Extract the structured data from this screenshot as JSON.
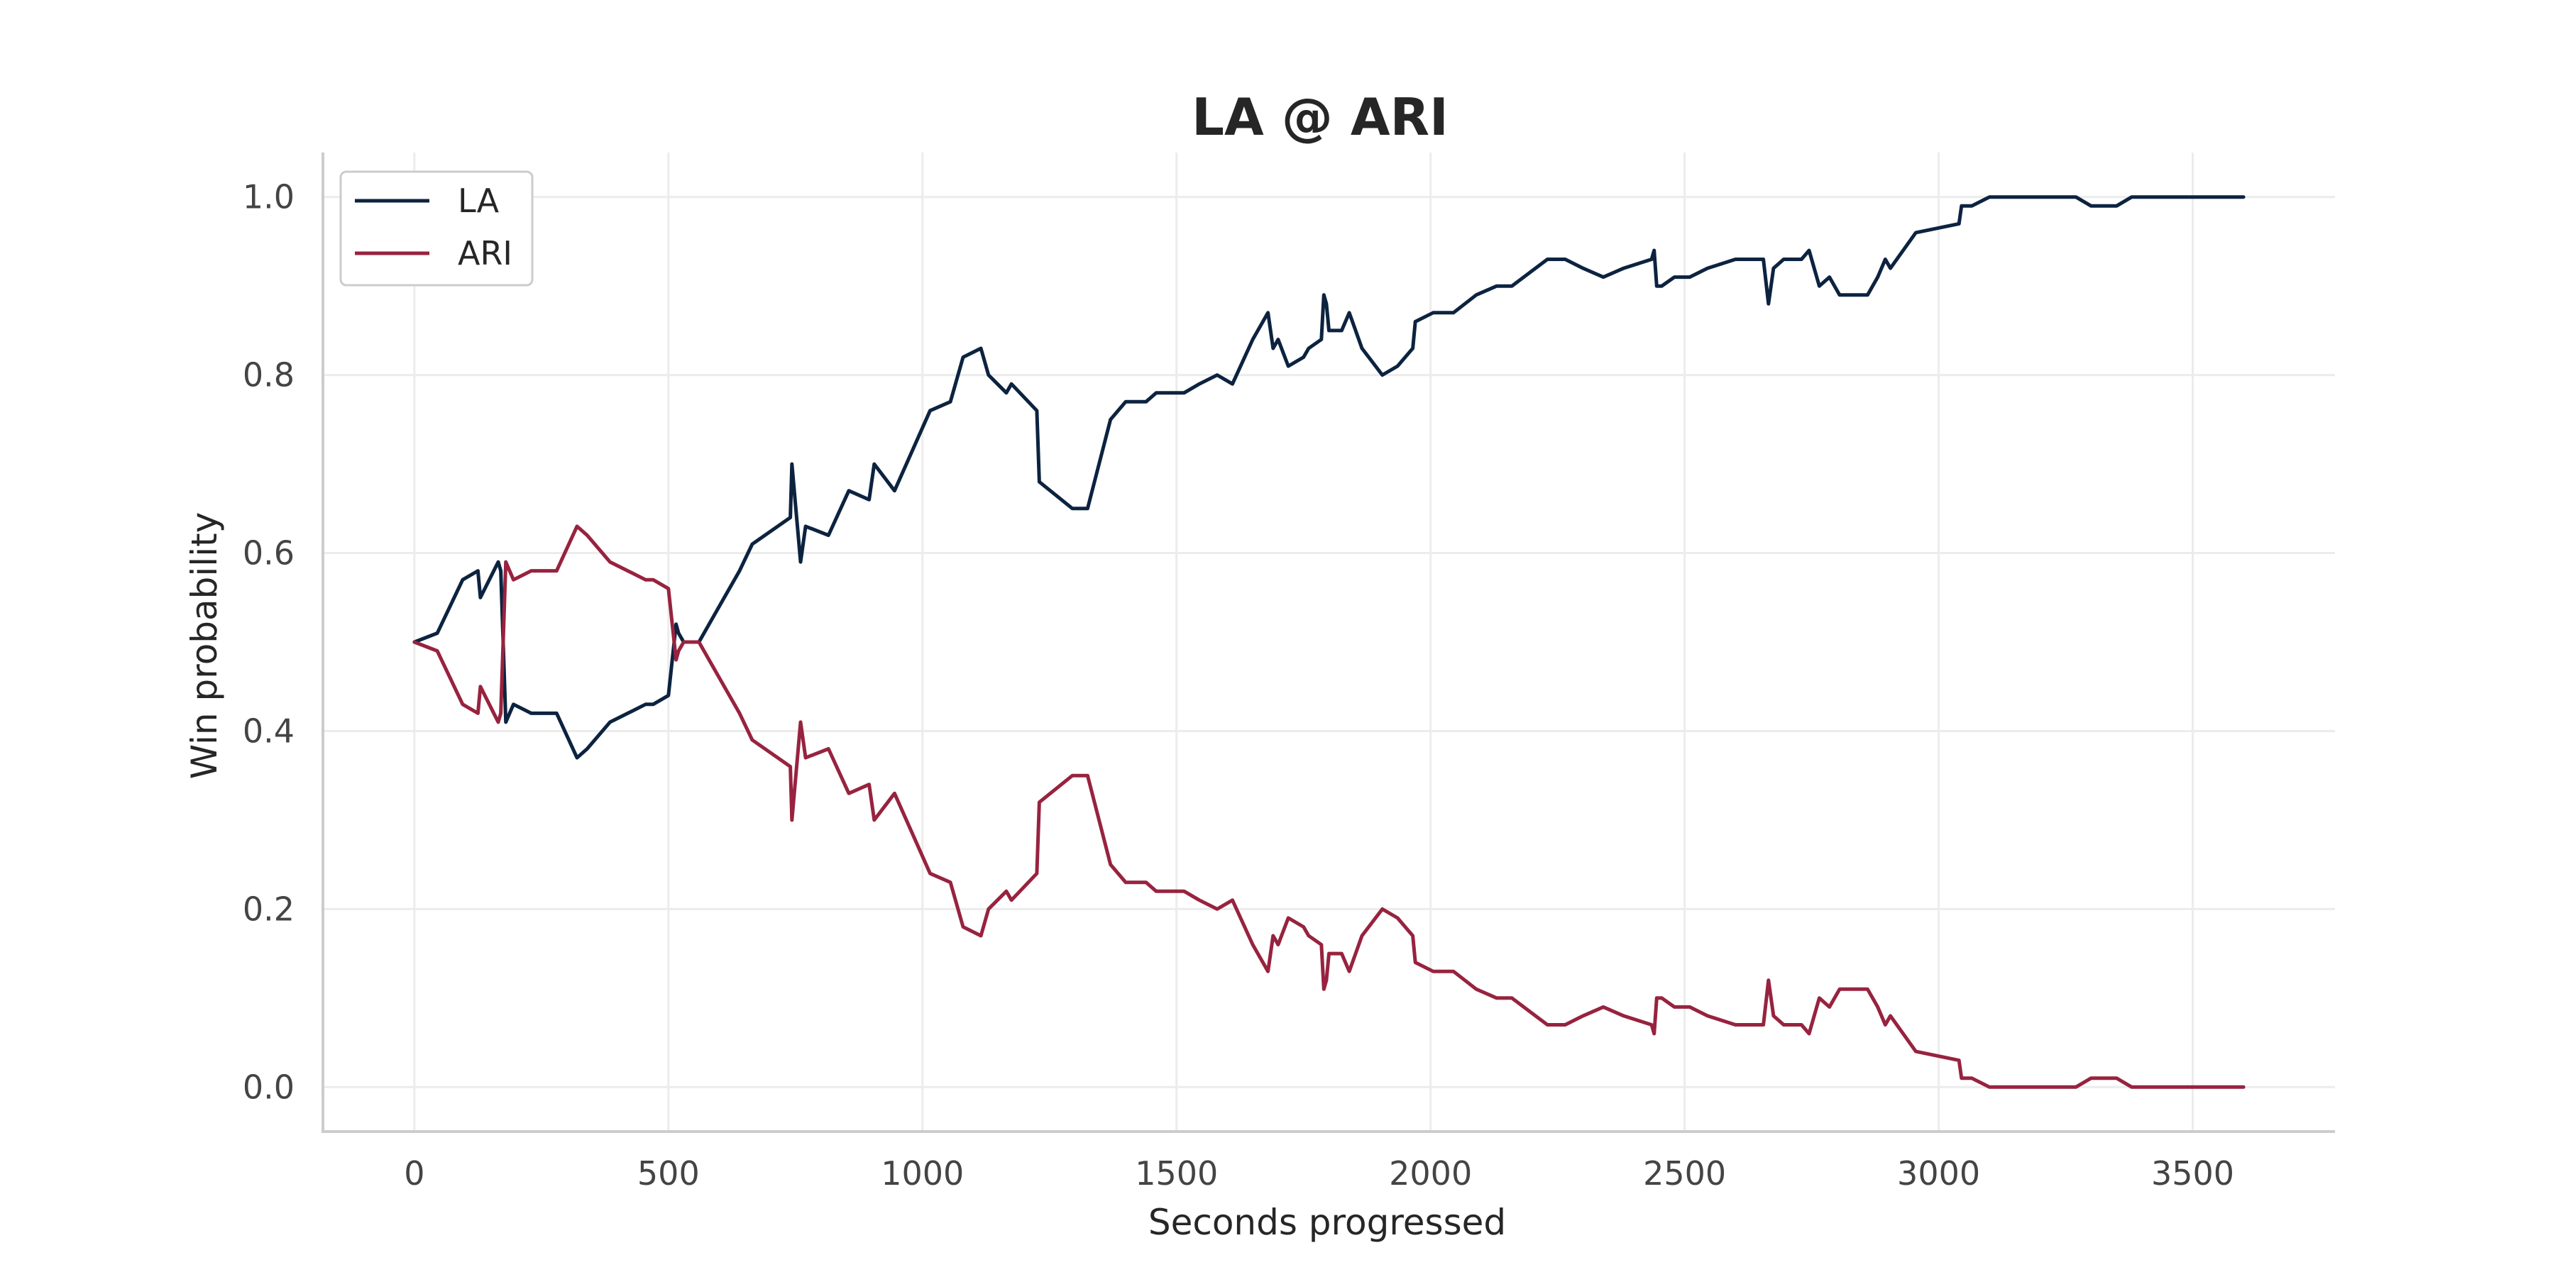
{
  "chart_data": {
    "type": "line",
    "title": "LA @ ARI",
    "xlabel": "Seconds progressed",
    "ylabel": "Win probability",
    "xlim": [
      -180,
      3780
    ],
    "ylim": [
      -0.05,
      1.05
    ],
    "xticks": [
      0,
      500,
      1000,
      1500,
      2000,
      2500,
      3000,
      3500
    ],
    "yticks": [
      0.0,
      0.2,
      0.4,
      0.6,
      0.8,
      1.0
    ],
    "ytick_labels": [
      "0.0",
      "0.2",
      "0.4",
      "0.6",
      "0.8",
      "1.0"
    ],
    "grid": true,
    "legend_position": "top-left",
    "series": [
      {
        "name": "LA",
        "color": "#0c2340",
        "x": [
          0,
          45,
          95,
          125,
          130,
          165,
          170,
          180,
          195,
          230,
          280,
          320,
          340,
          385,
          420,
          455,
          470,
          500,
          515,
          520,
          530,
          560,
          600,
          640,
          665,
          740,
          743,
          760,
          770,
          815,
          855,
          895,
          905,
          945,
          1015,
          1055,
          1080,
          1115,
          1130,
          1165,
          1175,
          1225,
          1230,
          1295,
          1325,
          1370,
          1400,
          1440,
          1460,
          1485,
          1515,
          1545,
          1580,
          1610,
          1650,
          1670,
          1680,
          1690,
          1700,
          1720,
          1750,
          1760,
          1785,
          1790,
          1795,
          1800,
          1825,
          1840,
          1865,
          1905,
          1935,
          1965,
          1970,
          2005,
          2045,
          2090,
          2130,
          2160,
          2230,
          2265,
          2300,
          2340,
          2380,
          2435,
          2440,
          2445,
          2455,
          2480,
          2510,
          2545,
          2600,
          2630,
          2655,
          2665,
          2675,
          2695,
          2730,
          2745,
          2765,
          2785,
          2805,
          2840,
          2860,
          2880,
          2895,
          2905,
          2955,
          3040,
          3045,
          3065,
          3100,
          3150,
          3200,
          3240,
          3270,
          3300,
          3340,
          3350,
          3380,
          3420,
          3460,
          3500,
          3540,
          3560,
          3580,
          3600
        ],
        "y": [
          0.5,
          0.51,
          0.57,
          0.58,
          0.55,
          0.59,
          0.58,
          0.41,
          0.43,
          0.42,
          0.42,
          0.37,
          0.38,
          0.41,
          0.42,
          0.43,
          0.43,
          0.44,
          0.52,
          0.51,
          0.5,
          0.5,
          0.54,
          0.58,
          0.61,
          0.64,
          0.7,
          0.59,
          0.63,
          0.62,
          0.67,
          0.66,
          0.7,
          0.67,
          0.76,
          0.77,
          0.82,
          0.83,
          0.8,
          0.78,
          0.79,
          0.76,
          0.68,
          0.65,
          0.65,
          0.75,
          0.77,
          0.77,
          0.78,
          0.78,
          0.78,
          0.79,
          0.8,
          0.79,
          0.84,
          0.86,
          0.87,
          0.83,
          0.84,
          0.81,
          0.82,
          0.83,
          0.84,
          0.89,
          0.88,
          0.85,
          0.85,
          0.87,
          0.83,
          0.8,
          0.81,
          0.83,
          0.86,
          0.87,
          0.87,
          0.89,
          0.9,
          0.9,
          0.93,
          0.93,
          0.92,
          0.91,
          0.92,
          0.93,
          0.94,
          0.9,
          0.9,
          0.91,
          0.91,
          0.92,
          0.93,
          0.93,
          0.93,
          0.88,
          0.92,
          0.93,
          0.93,
          0.94,
          0.9,
          0.91,
          0.89,
          0.89,
          0.89,
          0.91,
          0.93,
          0.92,
          0.96,
          0.97,
          0.99,
          0.99,
          1.0,
          1.0,
          1.0,
          1.0,
          1.0,
          0.99,
          0.99,
          0.99,
          1.0,
          1.0,
          1.0,
          1.0,
          1.0,
          1.0,
          1.0,
          1.0
        ],
        "line_style": "solid"
      },
      {
        "name": "ARI",
        "color": "#97233f",
        "x": [
          0,
          45,
          95,
          125,
          130,
          165,
          170,
          180,
          195,
          230,
          280,
          320,
          340,
          385,
          420,
          455,
          470,
          500,
          515,
          520,
          530,
          560,
          600,
          640,
          665,
          740,
          743,
          760,
          770,
          815,
          855,
          895,
          905,
          945,
          1015,
          1055,
          1080,
          1115,
          1130,
          1165,
          1175,
          1225,
          1230,
          1295,
          1325,
          1370,
          1400,
          1440,
          1460,
          1485,
          1515,
          1545,
          1580,
          1610,
          1650,
          1670,
          1680,
          1690,
          1700,
          1720,
          1750,
          1760,
          1785,
          1790,
          1795,
          1800,
          1825,
          1840,
          1865,
          1905,
          1935,
          1965,
          1970,
          2005,
          2045,
          2090,
          2130,
          2160,
          2230,
          2265,
          2300,
          2340,
          2380,
          2435,
          2440,
          2445,
          2455,
          2480,
          2510,
          2545,
          2600,
          2630,
          2655,
          2665,
          2675,
          2695,
          2730,
          2745,
          2765,
          2785,
          2805,
          2840,
          2860,
          2880,
          2895,
          2905,
          2955,
          3040,
          3045,
          3065,
          3100,
          3150,
          3200,
          3240,
          3270,
          3300,
          3340,
          3350,
          3380,
          3420,
          3460,
          3500,
          3540,
          3560,
          3580,
          3600
        ],
        "y": [
          0.5,
          0.49,
          0.43,
          0.42,
          0.45,
          0.41,
          0.42,
          0.59,
          0.57,
          0.58,
          0.58,
          0.63,
          0.62,
          0.59,
          0.58,
          0.57,
          0.57,
          0.56,
          0.48,
          0.49,
          0.5,
          0.5,
          0.46,
          0.42,
          0.39,
          0.36,
          0.3,
          0.41,
          0.37,
          0.38,
          0.33,
          0.34,
          0.3,
          0.33,
          0.24,
          0.23,
          0.18,
          0.17,
          0.2,
          0.22,
          0.21,
          0.24,
          0.32,
          0.35,
          0.35,
          0.25,
          0.23,
          0.23,
          0.22,
          0.22,
          0.22,
          0.21,
          0.2,
          0.21,
          0.16,
          0.14,
          0.13,
          0.17,
          0.16,
          0.19,
          0.18,
          0.17,
          0.16,
          0.11,
          0.12,
          0.15,
          0.15,
          0.13,
          0.17,
          0.2,
          0.19,
          0.17,
          0.14,
          0.13,
          0.13,
          0.11,
          0.1,
          0.1,
          0.07,
          0.07,
          0.08,
          0.09,
          0.08,
          0.07,
          0.06,
          0.1,
          0.1,
          0.09,
          0.09,
          0.08,
          0.07,
          0.07,
          0.07,
          0.12,
          0.08,
          0.07,
          0.07,
          0.06,
          0.1,
          0.09,
          0.11,
          0.11,
          0.11,
          0.09,
          0.07,
          0.08,
          0.04,
          0.03,
          0.01,
          0.01,
          0.0,
          0.0,
          0.0,
          0.0,
          0.0,
          0.01,
          0.01,
          0.01,
          0.0,
          0.0,
          0.0,
          0.0,
          0.0,
          0.0,
          0.0,
          0.0
        ],
        "line_style": "solid"
      }
    ]
  }
}
